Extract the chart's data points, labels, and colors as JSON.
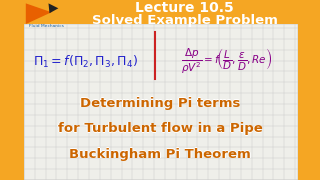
{
  "bg_color": "#f5a623",
  "grid_bg": "#efefea",
  "title1": "Lecture 10.5",
  "title2": "Solved Example Problem",
  "bottom1": "Determining Pi terms",
  "bottom2": "for Turbulent flow in a Pipe",
  "bottom3": "Buckingham Pi Theorem",
  "orange": "#f5a623",
  "dark_orange": "#e07b00",
  "blue_eq": "#2222cc",
  "purple_eq": "#880088",
  "bottom_color": "#cc6600",
  "bottom_stroke": "#ffffff",
  "logo_color": "#1a5fa0",
  "grid_line_color": "#cccccc",
  "divider_color": "#cc2222",
  "title_color": "#ffffff",
  "logo_orange": "#e85500",
  "logo_dark": "#222222"
}
